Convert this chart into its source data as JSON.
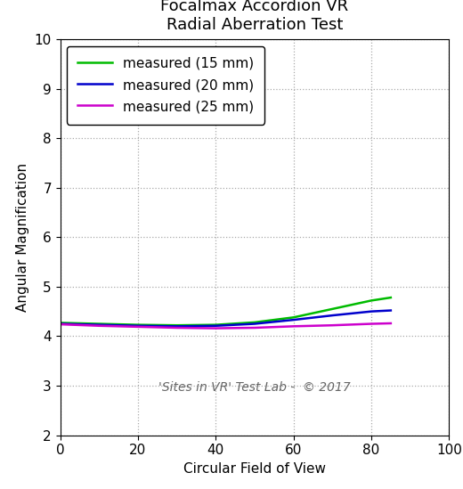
{
  "title": "Focalmax Accordion VR\nRadial Aberration Test",
  "xlabel": "Circular Field of View",
  "ylabel": "Angular Magnification",
  "watermark": "'Sites in VR' Test Lab -  © 2017",
  "xlim": [
    0,
    100
  ],
  "ylim": [
    2,
    10
  ],
  "xticks": [
    0,
    20,
    40,
    60,
    80,
    100
  ],
  "yticks": [
    2,
    3,
    4,
    5,
    6,
    7,
    8,
    9,
    10
  ],
  "series": [
    {
      "label": "measured (15 mm)",
      "color": "#00bb00",
      "x": [
        0,
        10,
        20,
        30,
        40,
        50,
        60,
        70,
        80,
        85
      ],
      "y": [
        4.27,
        4.25,
        4.23,
        4.22,
        4.23,
        4.28,
        4.38,
        4.55,
        4.72,
        4.78
      ]
    },
    {
      "label": "measured (20 mm)",
      "color": "#0000cc",
      "x": [
        0,
        10,
        20,
        30,
        40,
        50,
        60,
        70,
        80,
        85
      ],
      "y": [
        4.25,
        4.23,
        4.21,
        4.2,
        4.21,
        4.25,
        4.33,
        4.42,
        4.5,
        4.52
      ]
    },
    {
      "label": "measured (25 mm)",
      "color": "#cc00cc",
      "x": [
        0,
        10,
        20,
        30,
        40,
        50,
        60,
        70,
        80,
        85
      ],
      "y": [
        4.24,
        4.21,
        4.19,
        4.17,
        4.16,
        4.17,
        4.2,
        4.22,
        4.25,
        4.26
      ]
    }
  ],
  "grid_color": "#aaaaaa",
  "grid_linestyle": ":",
  "legend_loc": "upper left",
  "title_fontsize": 13,
  "label_fontsize": 11,
  "tick_fontsize": 11,
  "legend_fontsize": 11,
  "watermark_fontsize": 10,
  "fig_width": 5.2,
  "fig_height": 5.49,
  "dpi": 100
}
